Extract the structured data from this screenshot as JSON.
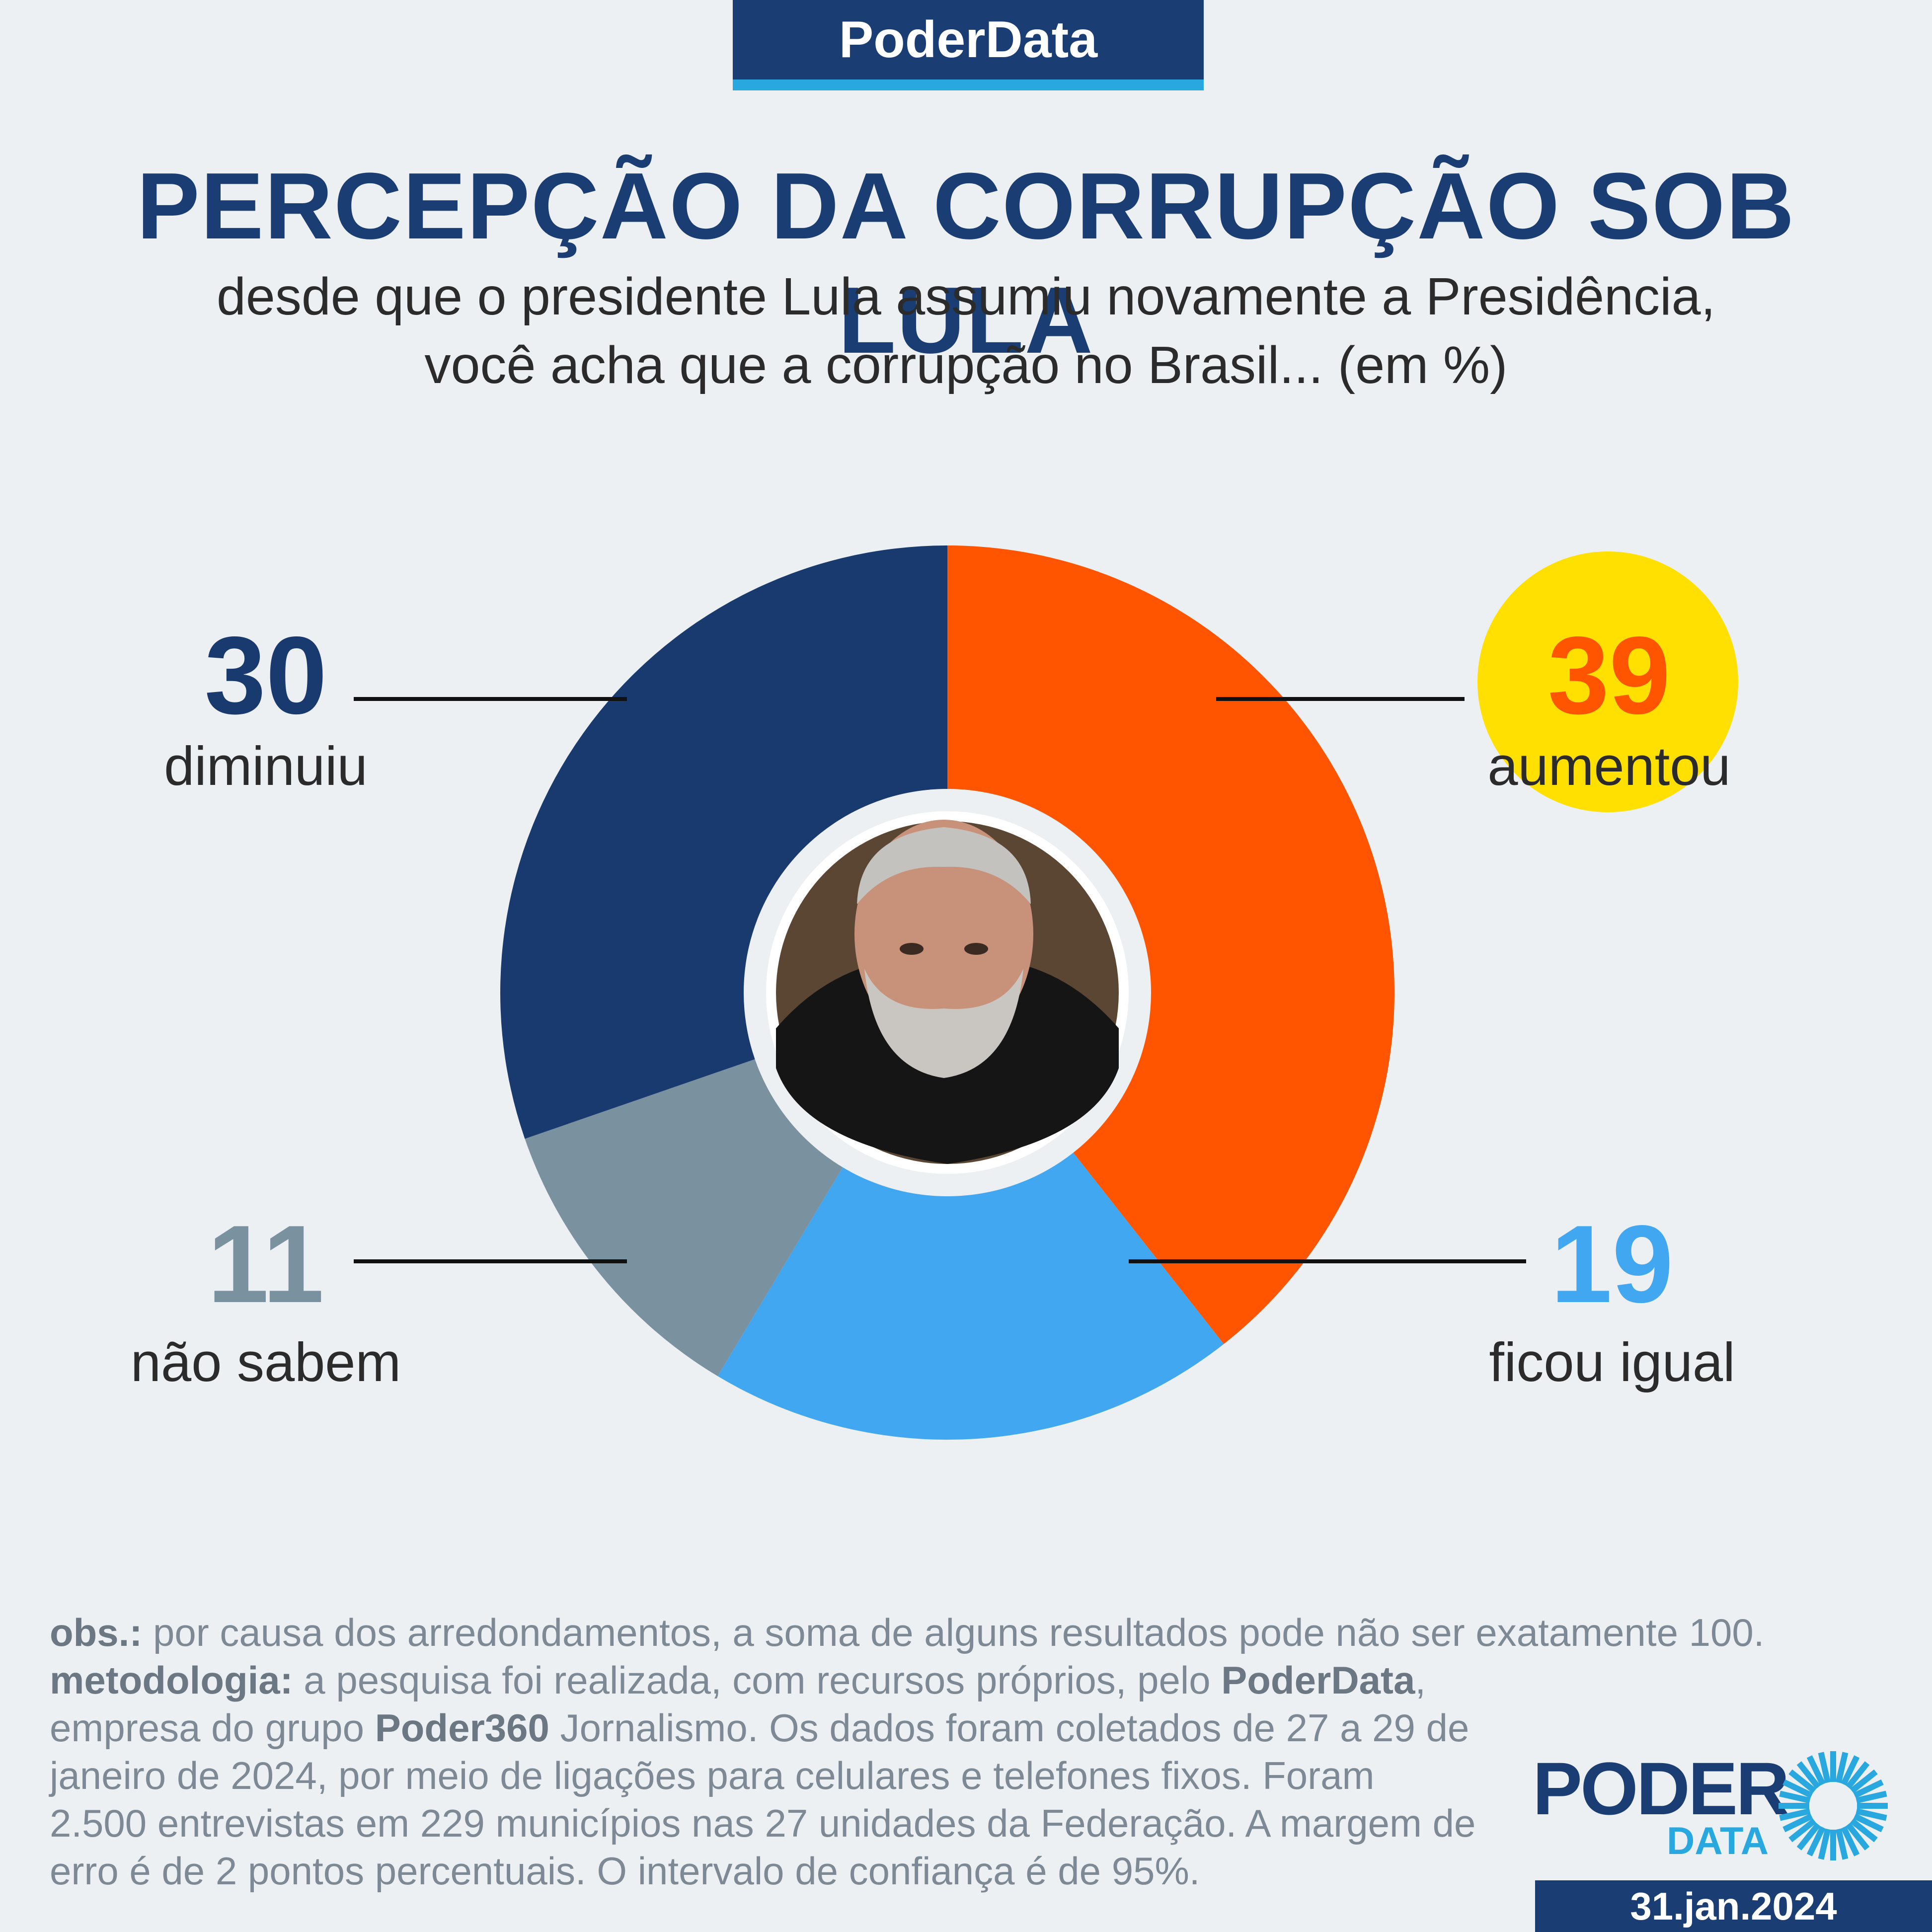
{
  "brand": "PoderData",
  "title": "PERCEPÇÃO DA CORRUPÇÃO SOB LULA",
  "subtitle_lines": [
    "desde que o presidente Lula assumiu novamente a Presidência,",
    "você acha que a corrupção no Brasil... (em %)"
  ],
  "chart_data": {
    "type": "pie",
    "variant": "donut",
    "unit": "%",
    "slices": [
      {
        "label": "aumentou",
        "value": 39,
        "color": "#ff5500",
        "value_color": "#ff5500"
      },
      {
        "label": "ficou igual",
        "value": 19,
        "color": "#41a7f1",
        "value_color": "#41a7f1"
      },
      {
        "label": "não sabem",
        "value": 11,
        "color": "#7a919f",
        "value_color": "#7a919f"
      },
      {
        "label": "diminuiu",
        "value": 30,
        "color": "#193a6e",
        "value_color": "#193a6e"
      }
    ],
    "highlighted_slice": "aumentou",
    "highlight_color": "#ffe000",
    "center_image": "photo of president Lula"
  },
  "notes": {
    "obs_label": "obs.:",
    "obs_text": " por causa dos arredondamentos, a soma de alguns resultados pode não ser exatamente 100.",
    "method_label": "metodologia:",
    "method_text_1": " a pesquisa foi realizada, com recursos próprios, pelo ",
    "method_brand": "PoderData",
    "method_text_2": ", empresa do grupo ",
    "method_group": "Poder360",
    "method_text_3": " Jornalismo. Os dados foram coletados de 27 a 29 de janeiro de 2024, por meio de ligações para celulares e telefones fixos. Foram 2.500 entrevistas em 229 municípios nas 27 unidades da Federação. A margem de erro é de 2 pontos percentuais. O intervalo de confiança é de 95%."
  },
  "logo": {
    "word1": "PODER",
    "word2": "DATA"
  },
  "date": "31.jan.2024",
  "colors": {
    "navy": "#1a3e73",
    "accent": "#29a8e0",
    "background": "#edf0f3"
  }
}
